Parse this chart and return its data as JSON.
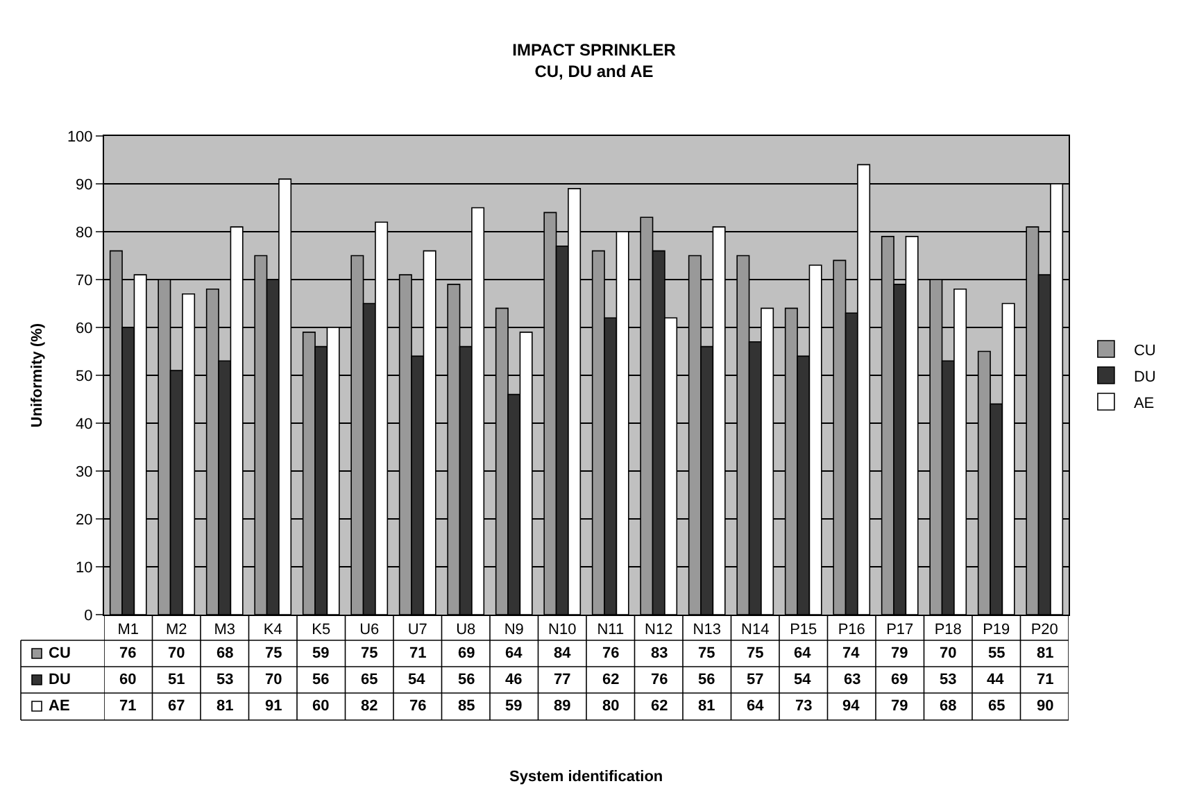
{
  "chart_data": {
    "type": "bar",
    "title": "IMPACT SPRINKLER\nCU, DU and AE",
    "annotations": [
      "System identification"
    ],
    "ylabel": "Uniformity (%)",
    "categories": [
      "M1",
      "M2",
      "M3",
      "K4",
      "K5",
      "U6",
      "U7",
      "U8",
      "N9",
      "N10",
      "N11",
      "N12",
      "N13",
      "N14",
      "P15",
      "P16",
      "P17",
      "P18",
      "P19",
      "P20"
    ],
    "series": [
      {
        "name": "CU",
        "color": "#999999",
        "values": [
          76,
          70,
          68,
          75,
          59,
          75,
          71,
          69,
          64,
          84,
          76,
          83,
          75,
          75,
          64,
          74,
          79,
          70,
          55,
          81
        ]
      },
      {
        "name": "DU",
        "color": "#333333",
        "values": [
          60,
          51,
          53,
          70,
          56,
          65,
          54,
          56,
          46,
          77,
          62,
          76,
          56,
          57,
          54,
          63,
          69,
          53,
          44,
          71
        ]
      },
      {
        "name": "AE",
        "color": "#ffffff",
        "values": [
          71,
          67,
          81,
          91,
          60,
          82,
          76,
          85,
          59,
          89,
          80,
          62,
          81,
          64,
          73,
          94,
          79,
          68,
          65,
          90
        ]
      }
    ],
    "ylim": [
      0,
      100
    ],
    "yticks": [
      0,
      10,
      20,
      30,
      40,
      50,
      60,
      70,
      80,
      90,
      100
    ],
    "grid": "y",
    "legend": "right",
    "data_labels": true
  }
}
